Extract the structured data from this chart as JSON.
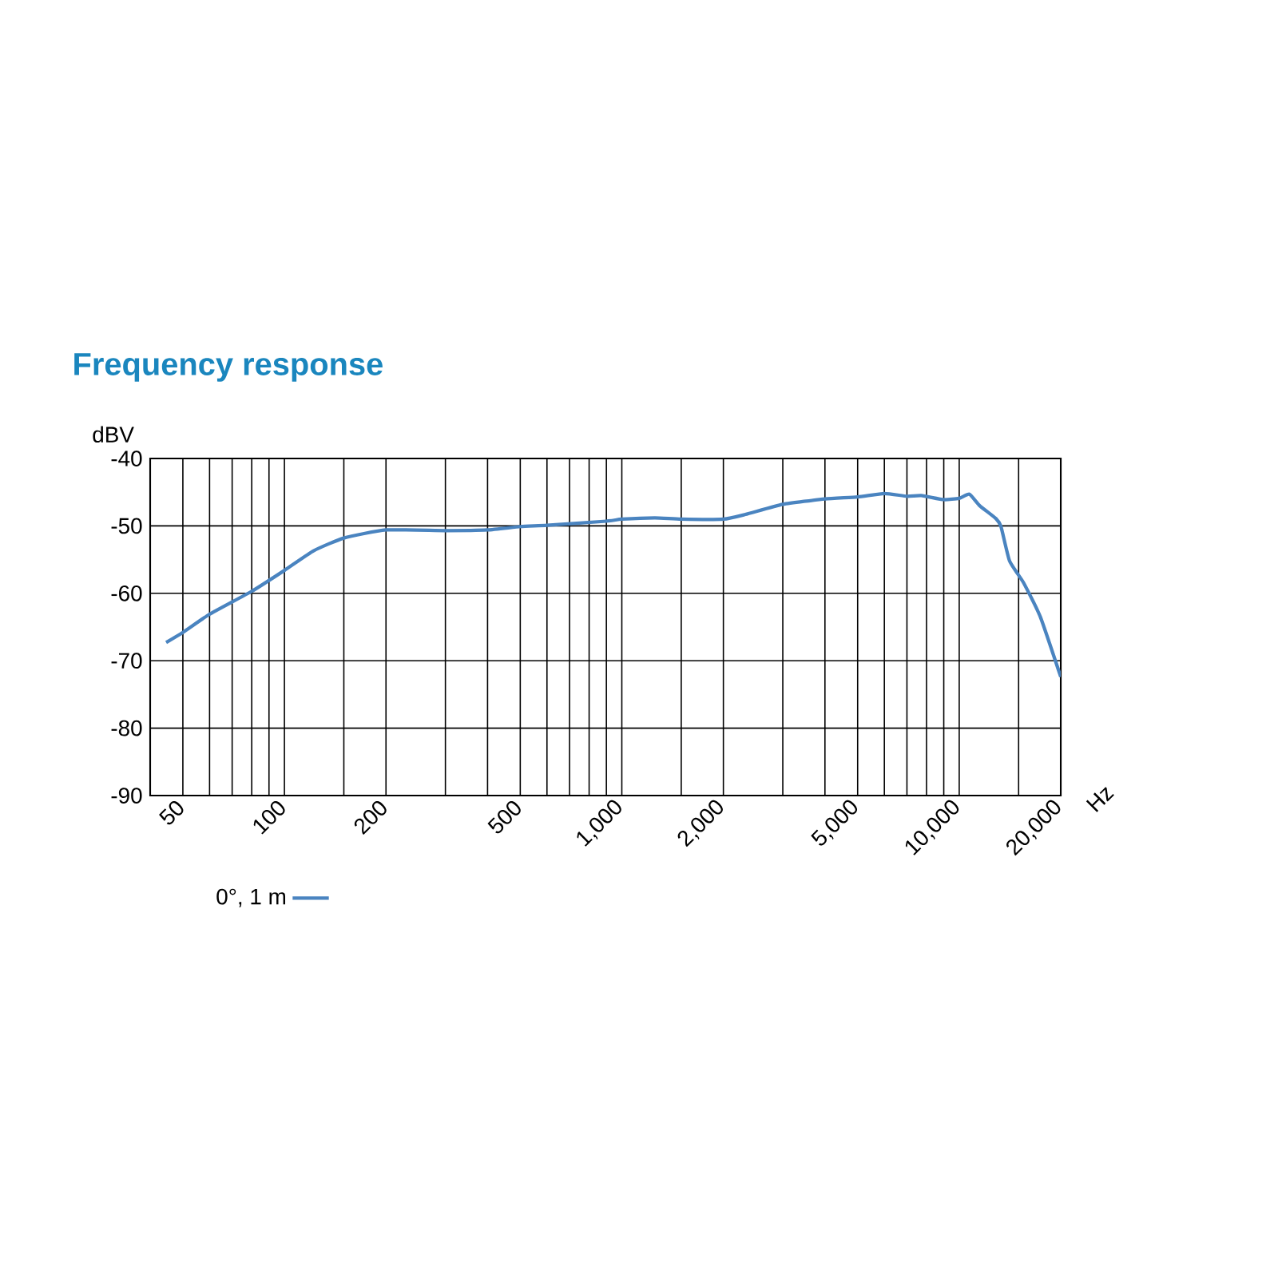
{
  "chart_data": {
    "type": "line",
    "title": "Frequency response",
    "xlabel": "Hz",
    "ylabel": "dBV",
    "log": "x",
    "grid": true,
    "legend": "bottom left",
    "line_style": "solid",
    "marker": "none",
    "xlim": [
      40,
      20000
    ],
    "ylim": [
      -90,
      -40
    ],
    "xticks": [
      50,
      {
        "value": 60,
        "label": null
      },
      {
        "value": 70,
        "label": null
      },
      {
        "value": 80,
        "label": null
      },
      {
        "value": 90,
        "label": null
      },
      100,
      {
        "value": 150,
        "label": null
      },
      200,
      {
        "value": 300,
        "label": null
      },
      {
        "value": 400,
        "label": null
      },
      500,
      {
        "value": 600,
        "label": null
      },
      {
        "value": 700,
        "label": null
      },
      {
        "value": 800,
        "label": null
      },
      {
        "value": 900,
        "label": null
      },
      {
        "value": 1000,
        "label": "1,000"
      },
      {
        "value": 1500,
        "label": null
      },
      {
        "value": 2000,
        "label": "2,000"
      },
      {
        "value": 3000,
        "label": null
      },
      {
        "value": 4000,
        "label": null
      },
      {
        "value": 5000,
        "label": "5,000"
      },
      {
        "value": 6000,
        "label": null
      },
      {
        "value": 7000,
        "label": null
      },
      {
        "value": 8000,
        "label": null
      },
      {
        "value": 9000,
        "label": null
      },
      {
        "value": 10000,
        "label": "10,000"
      },
      {
        "value": 15000,
        "label": null
      },
      {
        "value": 20000,
        "label": "20,000"
      }
    ],
    "yticks": [
      -90,
      -80,
      -70,
      -60,
      -50,
      -40
    ],
    "series": [
      {
        "name": "0°, 1 m",
        "color": "#4a84c0",
        "x": [
          44.6,
          50,
          60,
          80,
          100,
          122,
          150,
          200,
          300,
          400,
          500,
          600,
          900,
          1000,
          1253,
          1500,
          2000,
          2325,
          3000,
          4000,
          5000,
          6000,
          7000,
          7720,
          9000,
          10000,
          10720,
          11500,
          12840,
          13300,
          14100,
          15500,
          17400,
          20000
        ],
        "values": [
          -67.3,
          -65.8,
          -63.1,
          -59.7,
          -56.6,
          -53.7,
          -51.8,
          -50.6,
          -50.7,
          -50.6,
          -50.1,
          -49.9,
          -49.3,
          -49.0,
          -48.8,
          -49.0,
          -49.0,
          -48.3,
          -46.8,
          -46.0,
          -45.7,
          -45.2,
          -45.6,
          -45.5,
          -46.1,
          -45.9,
          -45.3,
          -47.0,
          -48.9,
          -50.1,
          -55.2,
          -58.4,
          -63.5,
          -72.4
        ]
      }
    ]
  }
}
